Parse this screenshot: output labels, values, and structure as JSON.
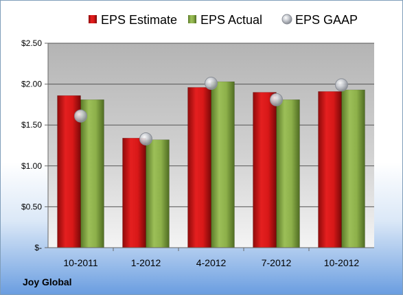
{
  "company": "Joy Global",
  "chart_data": {
    "type": "bar",
    "categories": [
      "10-2011",
      "1-2012",
      "4-2012",
      "7-2012",
      "10-2012"
    ],
    "series": [
      {
        "name": "EPS Estimate",
        "type": "bar",
        "color": "#cc1111",
        "values": [
          1.86,
          1.34,
          1.96,
          1.9,
          1.91
        ]
      },
      {
        "name": "EPS Actual",
        "type": "bar",
        "color": "#7ea040",
        "values": [
          1.81,
          1.32,
          2.03,
          1.81,
          1.93
        ]
      },
      {
        "name": "EPS GAAP",
        "type": "marker",
        "color": "#b8bcc4",
        "values": [
          1.61,
          1.33,
          2.01,
          1.81,
          1.99
        ]
      }
    ],
    "yticks": [
      "$-",
      "$0.50",
      "$1.00",
      "$1.50",
      "$2.00",
      "$2.50"
    ],
    "ylim": [
      0,
      2.5
    ],
    "grid": true,
    "legend": "top"
  }
}
